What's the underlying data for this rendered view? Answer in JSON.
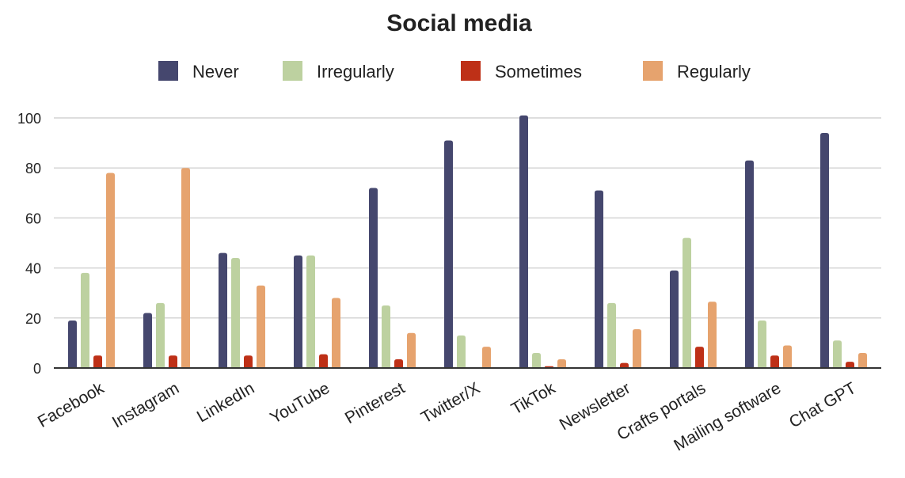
{
  "chart_data": {
    "type": "bar",
    "title": "Social media",
    "xlabel": "",
    "ylabel": "",
    "ylim": [
      0,
      100
    ],
    "yticks": [
      0,
      20,
      40,
      60,
      80,
      100
    ],
    "grid": true,
    "legend_position": "top-center",
    "categories": [
      "Facebook",
      "Instagram",
      "LinkedIn",
      "YouTube",
      "Pinterest",
      "Twitter/X",
      "TikTok",
      "Newsletter",
      "Crafts portals",
      "Mailing software",
      "Chat GPT"
    ],
    "series": [
      {
        "name": "Never",
        "color": "#45476e",
        "values": [
          19,
          22,
          46,
          45,
          72,
          91,
          101,
          71,
          39,
          83,
          94
        ]
      },
      {
        "name": "Irregularly",
        "color": "#bdd1a0",
        "values": [
          38,
          26,
          44,
          45,
          25,
          13,
          6,
          26,
          52,
          19,
          11
        ]
      },
      {
        "name": "Sometimes",
        "color": "#be3017",
        "values": [
          5,
          5,
          5,
          5.5,
          3.5,
          0,
          0.7,
          2,
          8.5,
          5,
          2.5
        ]
      },
      {
        "name": "Regularly",
        "color": "#e6a36e",
        "values": [
          78,
          80,
          33,
          28,
          14,
          8.5,
          3.5,
          15.5,
          26.5,
          9,
          6
        ]
      }
    ]
  }
}
